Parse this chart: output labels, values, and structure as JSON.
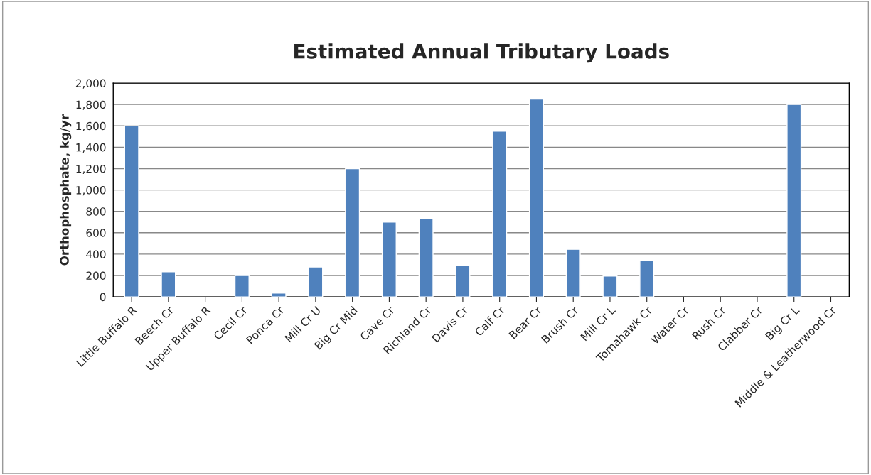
{
  "chart_data": {
    "type": "bar",
    "title": "Estimated Annual Tributary Loads",
    "ylabel": "Orthophosphate, kg/yr",
    "categories": [
      "Little Buffalo R",
      "Beech Cr",
      "Upper Buffalo R",
      "Cecil Cr",
      "Ponca Cr",
      "Mill Cr U",
      "Big Cr Mid",
      "Cave Cr",
      "Richland Cr",
      "Davis Cr",
      "Calf Cr",
      "Bear Cr",
      "Brush Cr",
      "Mill Cr L",
      "Tomahawk Cr",
      "Water Cr",
      "Rush Cr",
      "Clabber Cr",
      "Big Cr L",
      "Middle & Leatherwood Cr"
    ],
    "values": [
      1600,
      235,
      null,
      200,
      35,
      280,
      1200,
      700,
      730,
      295,
      1550,
      1850,
      445,
      195,
      340,
      null,
      null,
      null,
      1800,
      null
    ],
    "color": "#4f81bd",
    "ylim": [
      0,
      2000
    ],
    "yticks": [
      0,
      {
        "value": 200,
        "label": "200"
      },
      {
        "value": 400,
        "label": "400"
      },
      {
        "value": 600,
        "label": "600"
      },
      {
        "value": 800,
        "label": "800"
      },
      {
        "value": 1000,
        "label": "1,000"
      },
      {
        "value": 1200,
        "label": "1,200"
      },
      {
        "value": 1400,
        "label": "1,400"
      },
      {
        "value": 1600,
        "label": "1,600"
      },
      {
        "value": 1800,
        "label": "1,800"
      },
      {
        "value": 2000,
        "label": "2,000"
      }
    ],
    "grid": "y",
    "legend": false
  }
}
